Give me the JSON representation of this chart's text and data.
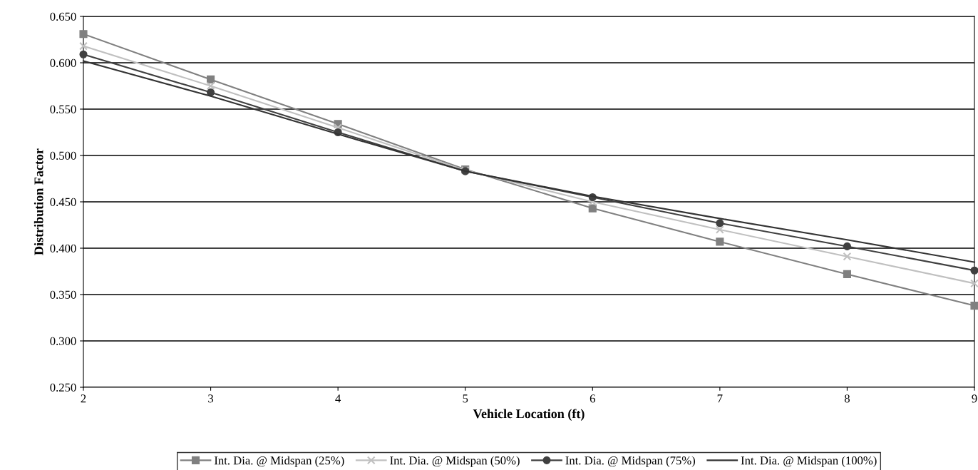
{
  "chart_data": {
    "type": "line",
    "xlabel": "Vehicle Location (ft)",
    "ylabel": "Distribution Factor",
    "x": [
      2,
      3,
      4,
      5,
      6,
      7,
      8,
      9
    ],
    "series": [
      {
        "name": "Int. Dia. @ Midspan (25%)",
        "color": "#808080",
        "marker": "square",
        "values": [
          0.631,
          0.582,
          0.534,
          0.485,
          0.443,
          0.407,
          0.372,
          0.338
        ]
      },
      {
        "name": "Int. Dia. @ Midspan (50%)",
        "color": "#c0c0c0",
        "marker": "cross",
        "values": [
          0.618,
          0.575,
          0.53,
          0.484,
          0.45,
          0.42,
          0.391,
          0.362
        ]
      },
      {
        "name": "Int. Dia. @ Midspan (75%)",
        "color": "#404040",
        "marker": "circle",
        "values": [
          0.609,
          0.568,
          0.525,
          0.483,
          0.455,
          0.427,
          0.402,
          0.376
        ]
      },
      {
        "name": "Int. Dia. @ Midspan (100%)",
        "color": "#333333",
        "marker": "none",
        "values": [
          0.602,
          0.564,
          0.523,
          0.483,
          0.456,
          0.432,
          0.409,
          0.385
        ]
      }
    ],
    "xlim": [
      2,
      9
    ],
    "xticks": [
      2,
      3,
      4,
      5,
      6,
      7,
      8,
      9
    ],
    "ylim": [
      0.25,
      0.65
    ],
    "yticks": [
      {
        "value": 0.25,
        "label": "0.250"
      },
      {
        "value": 0.3,
        "label": "0.300"
      },
      {
        "value": 0.35,
        "label": "0.350"
      },
      {
        "value": 0.4,
        "label": "0.400"
      },
      {
        "value": 0.45,
        "label": "0.450"
      },
      {
        "value": 0.5,
        "label": "0.500"
      },
      {
        "value": 0.55,
        "label": "0.550"
      },
      {
        "value": 0.6,
        "label": "0.600"
      },
      {
        "value": 0.65,
        "label": "0.650"
      }
    ],
    "grid": "y",
    "legend": "bottom",
    "line_style": "solid"
  }
}
